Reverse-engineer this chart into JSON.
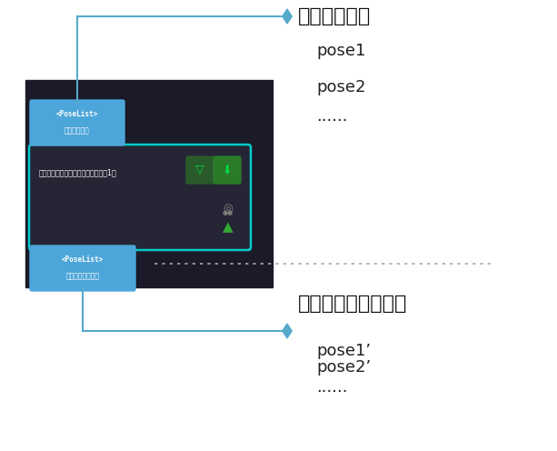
{
  "bg_color": "#ffffff",
  "dark_box_color": "#1a1a28",
  "node_top_label1": "<PoseList>",
  "node_top_label2": "元の位置姿勢",
  "node_bot_label1": "<PoseList>",
  "node_bot_label2": "変換後の位置姿勢",
  "node_color": "#4da6d9",
  "func_label": "位置姿勢を変換（直行ロボット）（1）",
  "func_bg": "#252535",
  "func_border": "#00cccc",
  "btn1_bg": "#2a5a2a",
  "btn2_bg": "#2a7a2a",
  "btn_icon1": "▽",
  "btn_icon2": "⬇",
  "btn_icon_color": "#00dd44",
  "title_top": "元の位置姿勢",
  "labels_top": [
    "pose1",
    "pose2",
    "......"
  ],
  "title_bot": "変換された位置姿勢",
  "labels_bot": [
    "pose1’",
    "pose2’",
    "......"
  ],
  "line_color": "#55aacc",
  "diamond_color": "#55aacc",
  "dot_line_color": "#aaaaaa",
  "text_color": "#111111"
}
